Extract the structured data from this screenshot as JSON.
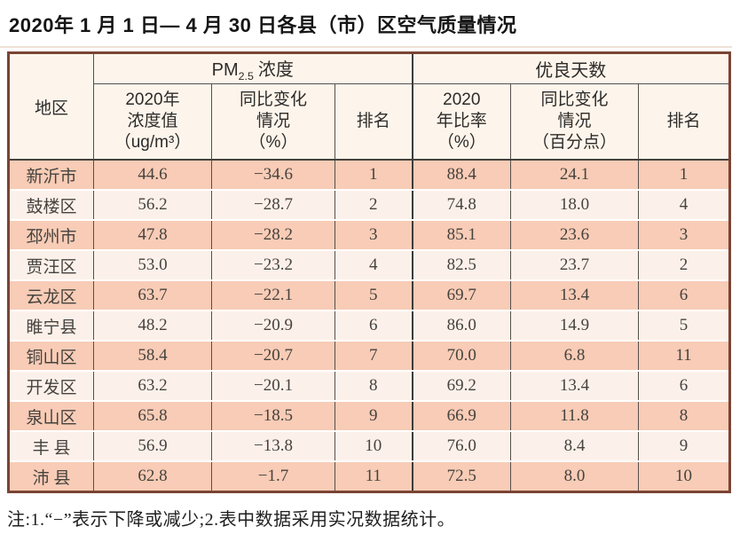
{
  "title": "2020年 1 月 1 日— 4 月 30 日各县（市）区空气质量情况",
  "colors": {
    "row_salmon": "#f8ccb6",
    "row_light": "#fcf1ea",
    "header_bg": "#fdf5ec",
    "outer_border": "#7a4434",
    "inner_border": "#55504b"
  },
  "table": {
    "header": {
      "region": "地区",
      "pm_group": {
        "prefix": "PM",
        "sub": "2.5",
        "suffix": "浓度"
      },
      "days_group": "优良天数",
      "sub": {
        "pm_value": "2020年\n浓度值\n（ug/m³）",
        "pm_change": "同比变化\n情况\n（%）",
        "pm_rank": "排名",
        "days_rate": "2020\n年比率\n（%）",
        "days_change": "同比变化\n情况\n（百分点）",
        "days_rank": "排名"
      }
    },
    "rows": [
      {
        "region": "新沂市",
        "pm_value": "44.6",
        "pm_change": "−34.6",
        "pm_rank": "1",
        "days_rate": "88.4",
        "days_change": "24.1",
        "days_rank": "1"
      },
      {
        "region": "鼓楼区",
        "pm_value": "56.2",
        "pm_change": "−28.7",
        "pm_rank": "2",
        "days_rate": "74.8",
        "days_change": "18.0",
        "days_rank": "4"
      },
      {
        "region": "邳州市",
        "pm_value": "47.8",
        "pm_change": "−28.2",
        "pm_rank": "3",
        "days_rate": "85.1",
        "days_change": "23.6",
        "days_rank": "3"
      },
      {
        "region": "贾汪区",
        "pm_value": "53.0",
        "pm_change": "−23.2",
        "pm_rank": "4",
        "days_rate": "82.5",
        "days_change": "23.7",
        "days_rank": "2"
      },
      {
        "region": "云龙区",
        "pm_value": "63.7",
        "pm_change": "−22.1",
        "pm_rank": "5",
        "days_rate": "69.7",
        "days_change": "13.4",
        "days_rank": "6"
      },
      {
        "region": "睢宁县",
        "pm_value": "48.2",
        "pm_change": "−20.9",
        "pm_rank": "6",
        "days_rate": "86.0",
        "days_change": "14.9",
        "days_rank": "5"
      },
      {
        "region": "铜山区",
        "pm_value": "58.4",
        "pm_change": "−20.7",
        "pm_rank": "7",
        "days_rate": "70.0",
        "days_change": "6.8",
        "days_rank": "11"
      },
      {
        "region": "开发区",
        "pm_value": "63.2",
        "pm_change": "−20.1",
        "pm_rank": "8",
        "days_rate": "69.2",
        "days_change": "13.4",
        "days_rank": "6"
      },
      {
        "region": "泉山区",
        "pm_value": "65.8",
        "pm_change": "−18.5",
        "pm_rank": "9",
        "days_rate": "66.9",
        "days_change": "11.8",
        "days_rank": "8"
      },
      {
        "region": "丰 县",
        "pm_value": "56.9",
        "pm_change": "−13.8",
        "pm_rank": "10",
        "days_rate": "76.0",
        "days_change": "8.4",
        "days_rank": "9"
      },
      {
        "region": "沛 县",
        "pm_value": "62.8",
        "pm_change": "−1.7",
        "pm_rank": "11",
        "days_rate": "72.5",
        "days_change": "8.0",
        "days_rank": "10"
      }
    ]
  },
  "footnote": "注:1.“−”表示下降或减少;2.表中数据采用实况数据统计。"
}
